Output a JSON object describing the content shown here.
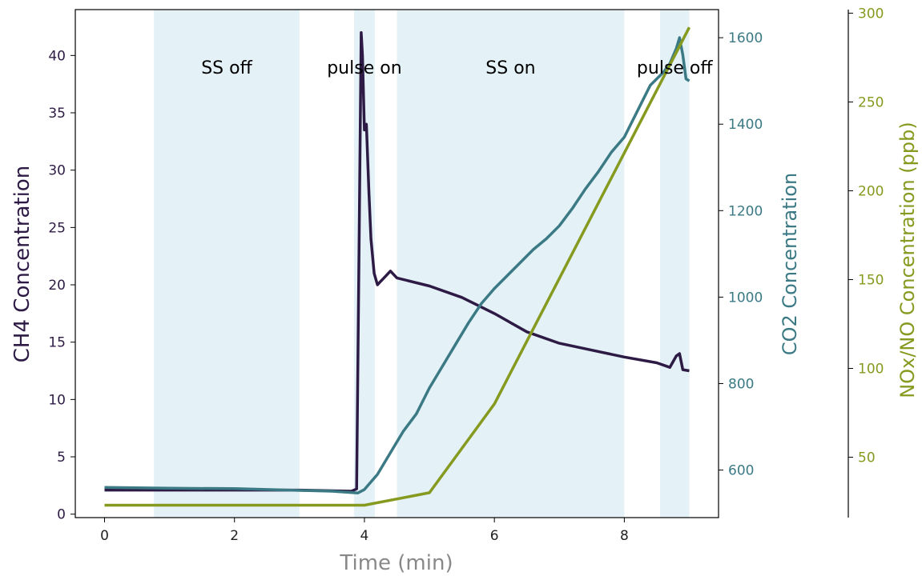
{
  "chart_data": {
    "type": "line",
    "xlabel": "Time (min)",
    "xlim": [
      -0.45,
      9.45
    ],
    "xticks": [
      0,
      2,
      4,
      6,
      8
    ],
    "axes": {
      "left": {
        "label": "CH4 Concentration",
        "ylim": [
          -0.3,
          44
        ],
        "ticks": [
          0,
          5,
          10,
          15,
          20,
          25,
          30,
          35,
          40
        ],
        "color": "#2d1b45"
      },
      "right": {
        "label": "CO2 Concentration",
        "ylim": [
          490,
          1665
        ],
        "ticks": [
          600,
          800,
          1000,
          1200,
          1400,
          1600
        ],
        "color": "#3b7a85"
      },
      "outer": {
        "label": "NOx/NO Concentration (ppb)",
        "ylim": [
          16,
          302
        ],
        "ticks": [
          50,
          100,
          150,
          200,
          250,
          300
        ],
        "color": "#859a1f"
      }
    },
    "regions": [
      {
        "label": "SS off",
        "x0": 0.76,
        "x1": 3.0
      },
      {
        "label": "pulse on",
        "x0": 3.84,
        "x1": 4.16
      },
      {
        "label": "SS on",
        "x0": 4.5,
        "x1": 8.0
      },
      {
        "label": "pulse off",
        "x0": 8.55,
        "x1": 9.0
      }
    ],
    "region_color": "#e4f1f6",
    "series": [
      {
        "axis": "left",
        "color": "#2d1b45",
        "x": [
          0,
          1,
          2,
          3,
          3.8,
          3.88,
          3.92,
          3.95,
          3.97,
          4.0,
          4.03,
          4.07,
          4.1,
          4.15,
          4.2,
          4.25,
          4.3,
          4.4,
          4.5,
          5.0,
          5.5,
          6.0,
          6.5,
          7.0,
          7.5,
          8.0,
          8.5,
          8.7,
          8.8,
          8.85,
          8.9,
          9.0
        ],
        "y": [
          2.1,
          2.1,
          2.1,
          2.1,
          2.0,
          2.2,
          25.0,
          42.0,
          40.0,
          33.5,
          34.0,
          28.0,
          24.0,
          21.0,
          20.0,
          20.3,
          20.6,
          21.2,
          20.6,
          19.9,
          18.9,
          17.5,
          15.9,
          14.9,
          14.3,
          13.7,
          13.2,
          12.8,
          13.8,
          14.0,
          12.6,
          12.5
        ]
      },
      {
        "axis": "right",
        "color": "#3b7a85",
        "x": [
          0,
          0.5,
          1,
          2,
          3,
          3.5,
          3.9,
          4.0,
          4.2,
          4.4,
          4.6,
          4.8,
          5.0,
          5.2,
          5.4,
          5.6,
          5.8,
          6.0,
          6.2,
          6.4,
          6.6,
          6.8,
          7.0,
          7.2,
          7.4,
          7.6,
          7.8,
          8.0,
          8.2,
          8.4,
          8.6,
          8.7,
          8.8,
          8.85,
          8.9,
          8.95,
          9.0
        ],
        "y": [
          560,
          559,
          558,
          557,
          553,
          551,
          547,
          555,
          590,
          640,
          690,
          730,
          790,
          840,
          890,
          940,
          985,
          1020,
          1050,
          1080,
          1110,
          1135,
          1165,
          1205,
          1250,
          1290,
          1335,
          1370,
          1430,
          1490,
          1520,
          1540,
          1575,
          1600,
          1560,
          1505,
          1500
        ]
      },
      {
        "axis": "outer",
        "color": "#859a1f",
        "x": [
          0,
          3.9,
          4.0,
          5.0,
          6.0,
          9.0
        ],
        "y": [
          23,
          23,
          23,
          30,
          80,
          292
        ]
      }
    ]
  }
}
